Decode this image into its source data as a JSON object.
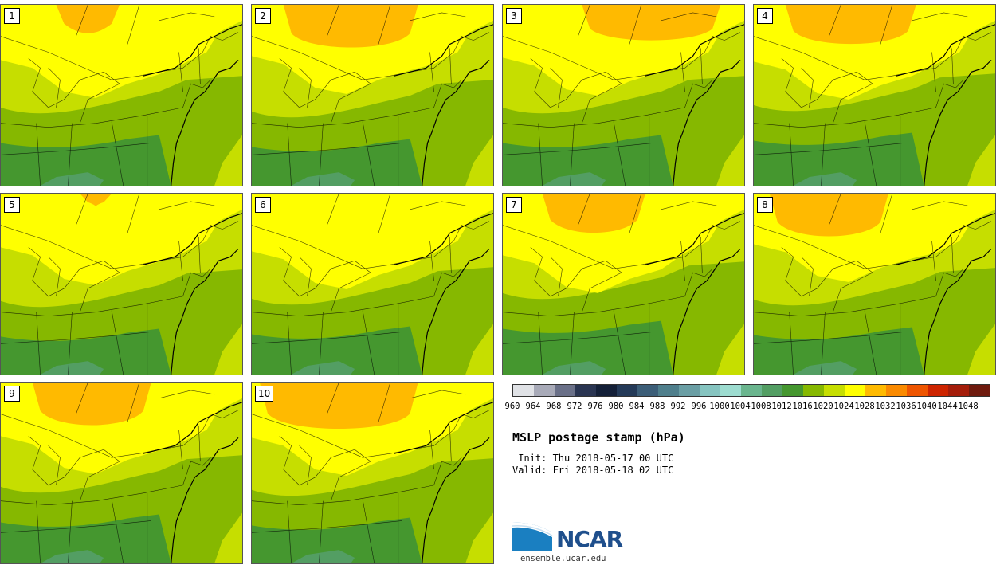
{
  "stamps": [
    {
      "label": "1"
    },
    {
      "label": "2"
    },
    {
      "label": "3"
    },
    {
      "label": "4"
    },
    {
      "label": "5"
    },
    {
      "label": "6"
    },
    {
      "label": "7"
    },
    {
      "label": "8"
    },
    {
      "label": "9"
    },
    {
      "label": "10"
    }
  ],
  "colorbar": {
    "colors": [
      "#e0e2e6",
      "#a8aab8",
      "#6a7088",
      "#2a3552",
      "#142038",
      "#243a58",
      "#3c5e78",
      "#4f7f8c",
      "#6a9ea4",
      "#86c4c0",
      "#9ddcd0",
      "#6ab58e",
      "#539e63",
      "#45972f",
      "#86b800",
      "#c6de00",
      "#ffff00",
      "#ffba00",
      "#fa8a00",
      "#ee5500",
      "#cd2400",
      "#a41d0a",
      "#6e1a0e"
    ],
    "ticks": [
      "960",
      "964",
      "968",
      "972",
      "976",
      "980",
      "984",
      "988",
      "992",
      "996",
      "1000",
      "1004",
      "1008",
      "1012",
      "1016",
      "1020",
      "1024",
      "1028",
      "1032",
      "1036",
      "1040",
      "1044",
      "1048"
    ]
  },
  "title": "MSLP postage stamp (hPa)",
  "init_line": " Init: Thu 2018-05-17 00 UTC",
  "valid_line": "Valid: Fri 2018-05-18 02 UTC",
  "logo": {
    "name": "NCAR",
    "url": "ensemble.ucar.edu"
  },
  "map_colors": {
    "c1028": "#ffba00",
    "c1024": "#ffff00",
    "c1020": "#c6de00",
    "c1016": "#86b800",
    "c1012": "#45972f",
    "c1008": "#539e63"
  }
}
